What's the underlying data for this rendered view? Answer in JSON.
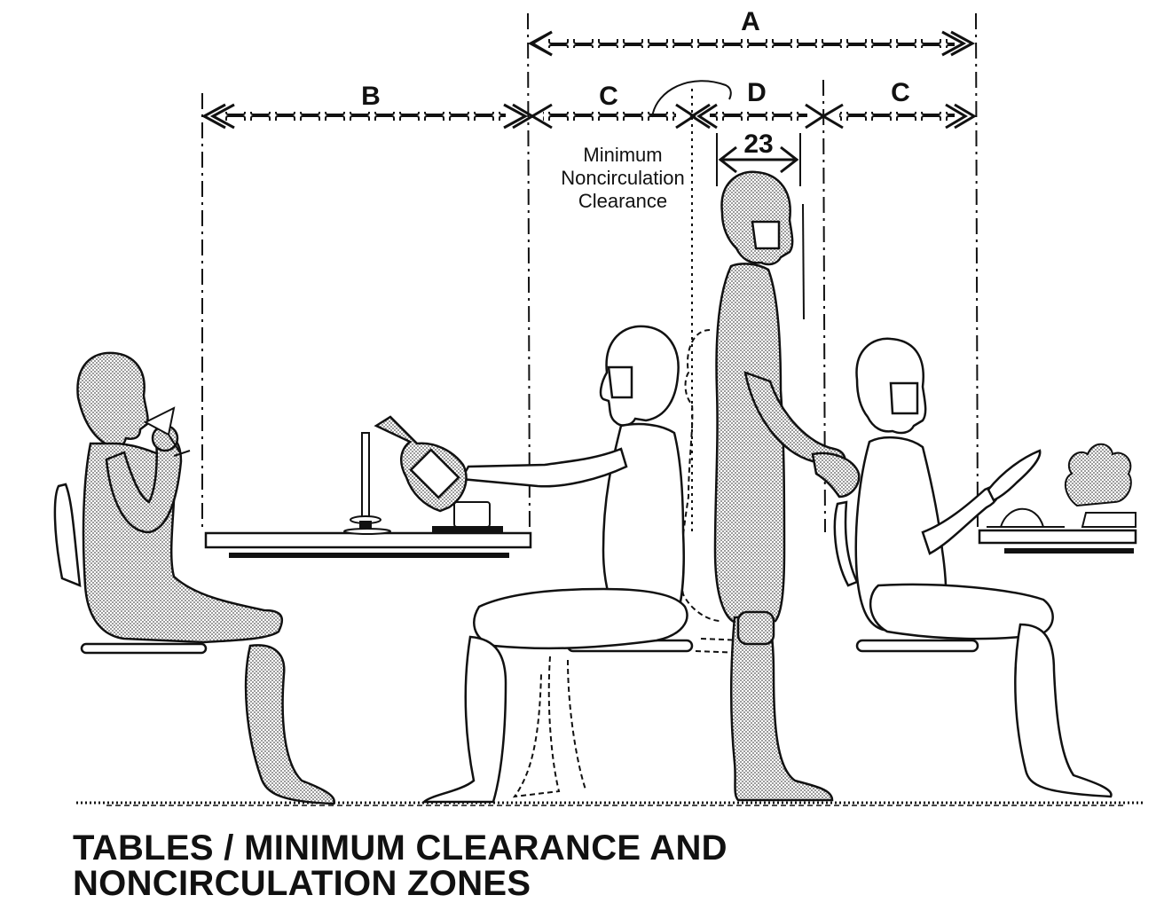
{
  "dimensions": {
    "a": "A",
    "b": "B",
    "c_left": "C",
    "d": "D",
    "c_right": "C",
    "width_value": "23"
  },
  "annotation": {
    "line1": "Minimum",
    "line2": "Noncirculation",
    "line3": "Clearance"
  },
  "caption": {
    "line1": "TABLES / MINIMUM CLEARANCE AND",
    "line2": "NONCIRCULATION ZONES"
  },
  "colors": {
    "ink": "#111111",
    "figure_shade": "#a9a9a9",
    "paper": "#ffffff"
  },
  "icons": [
    "seated-drinking-figure",
    "seated-pouring-figure",
    "standing-figure",
    "seated-gesturing-figure",
    "ghost-seated-figure",
    "table",
    "chair",
    "bottle",
    "candle",
    "glass",
    "plant"
  ]
}
